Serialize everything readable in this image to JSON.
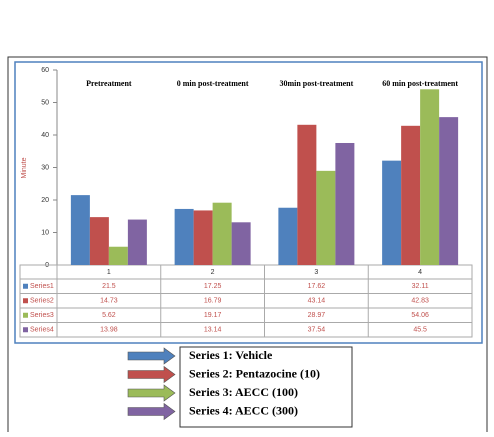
{
  "chart_data": {
    "type": "bar",
    "categories": [
      "1",
      "2",
      "3",
      "4"
    ],
    "group_labels": [
      "Pretreatment",
      "0 min post-treatment",
      "30min post-treatment",
      "60 min post-treatment"
    ],
    "y_label": "Minute",
    "ylim": [
      0,
      60
    ],
    "yticks": [
      0,
      10,
      20,
      30,
      40,
      50,
      60
    ],
    "grid": false,
    "series": [
      {
        "name": "Series1",
        "color": "#4f81bd",
        "values": [
          21.5,
          17.25,
          17.62,
          32.11
        ]
      },
      {
        "name": "Series2",
        "color": "#c0504d",
        "values": [
          14.73,
          16.79,
          43.14,
          42.83
        ]
      },
      {
        "name": "Series3",
        "color": "#9bbb59",
        "values": [
          5.62,
          19.17,
          28.97,
          54.06
        ]
      },
      {
        "name": "Series4",
        "color": "#8064a2",
        "values": [
          13.98,
          13.14,
          37.54,
          45.5
        ]
      }
    ],
    "legend_notes": [
      "Series 1: Vehicle",
      "Series 2: Pentazocine (10)",
      "Series 3: AECC (100)",
      "Series 4: AECC (300)"
    ]
  }
}
